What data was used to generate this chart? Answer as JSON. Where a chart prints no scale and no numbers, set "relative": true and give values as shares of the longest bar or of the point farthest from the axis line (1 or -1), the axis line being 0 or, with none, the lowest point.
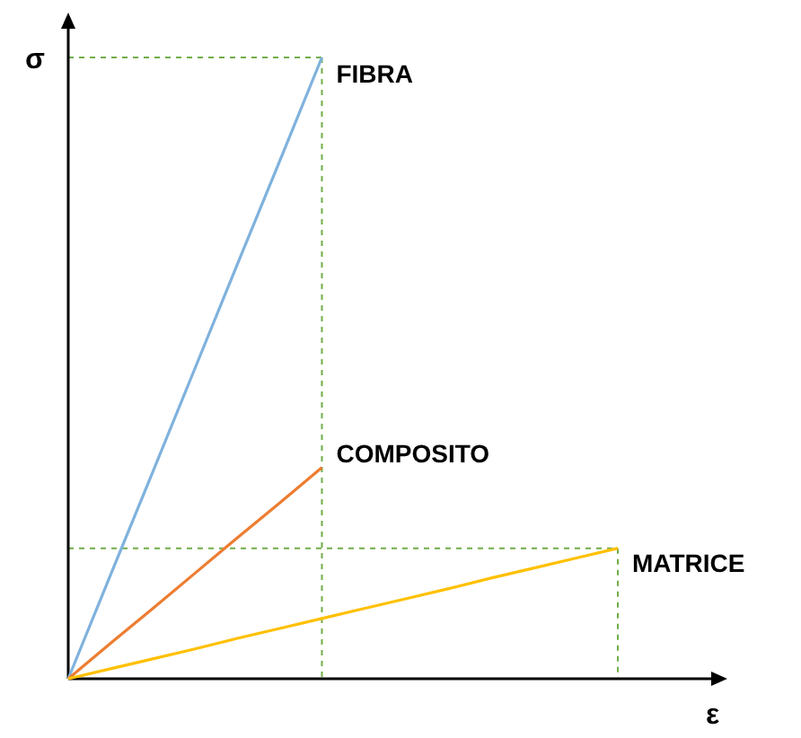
{
  "chart_data": {
    "type": "line",
    "relative": true,
    "xlabel": "ε",
    "ylabel": "σ",
    "categories": [
      null,
      null,
      null,
      null,
      null,
      null,
      null,
      null,
      null,
      null,
      null,
      null,
      null,
      null
    ],
    "series": [
      {
        "name": "FIBRA",
        "color": "#7fb2dd",
        "values": [
          0,
          0.167,
          0.333,
          0.5,
          0.667,
          0.833,
          1,
          null,
          null,
          null,
          null,
          null,
          null,
          null
        ]
      },
      {
        "name": "COMPOSITO",
        "color": "#ed7d31",
        "values": [
          0,
          0.057,
          0.113,
          0.17,
          0.227,
          0.283,
          0.34,
          null,
          null,
          null,
          null,
          null,
          null,
          null
        ]
      },
      {
        "name": "MATRICE",
        "color": "#ffc000",
        "values": [
          0,
          0.016,
          0.032,
          0.048,
          0.065,
          0.081,
          0.097,
          0.113,
          0.129,
          0.145,
          0.162,
          0.178,
          0.194,
          0.21
        ]
      }
    ],
    "ref_lines": [
      {
        "axis": "y",
        "value": 1,
        "color": "#70ad47",
        "line_style": "dashed"
      },
      {
        "axis": "y",
        "value": 0.21,
        "color": "#70ad47",
        "line_style": "dashed"
      }
    ]
  }
}
